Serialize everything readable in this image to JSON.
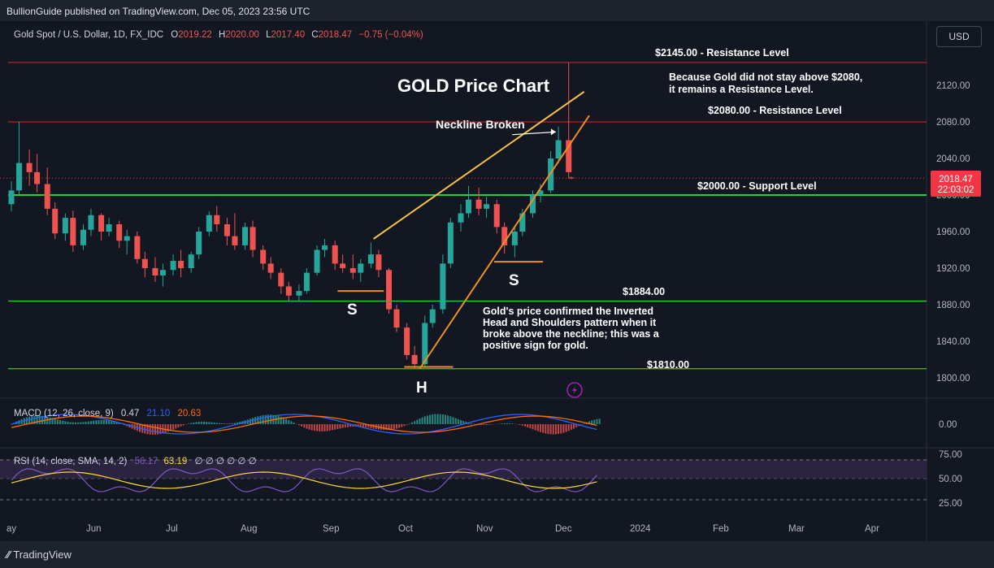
{
  "header": {
    "published": "BullionGuide published on TradingView.com, Dec 05, 2023 23:56 UTC"
  },
  "legend": {
    "symbol": "Gold Spot / U.S. Dollar, 1D, FX_IDC",
    "o_label": "O",
    "o": "2019.22",
    "h_label": "H",
    "h": "2020.00",
    "l_label": "L",
    "l": "2017.40",
    "c_label": "C",
    "c": "2018.47",
    "change": "−0.75 (−0.04%)"
  },
  "currency_button": "USD",
  "price_tag": {
    "price": "2018.47",
    "countdown": "22:03:02"
  },
  "annotations": {
    "title": "GOLD Price Chart",
    "res_2145": "$2145.00 - Resistance Level",
    "res_note_1": "Because Gold did not stay above $2080,",
    "res_note_2": "it remains a Resistance Level.",
    "res_2080": "$2080.00 - Resistance Level",
    "neckline": "Neckline Broken",
    "support_2000": "$2000.00 - Support Level",
    "level_1884": "$1884.00",
    "level_1810": "$1810.00",
    "s_left": "S",
    "s_right": "S",
    "head": "H",
    "desc": [
      "Gold's price confirmed the Inverted",
      "Head and Shoulders pattern when it",
      "broke above the neckline; this was a",
      "positive sign for gold."
    ]
  },
  "macd_legend": {
    "label": "MACD (12, 26, close, 9)",
    "hist": "0.47",
    "macd": "21.10",
    "signal": "20.63"
  },
  "rsi_legend": {
    "label": "RSI (14, close, SMA, 14, 2)",
    "rsi": "56.17",
    "sma": "63.19",
    "rest": "∅ ∅ ∅ ∅ ∅ ∅"
  },
  "footer": {
    "brand": "TradingView"
  },
  "colors": {
    "up": "#26a69a",
    "down": "#ef5350",
    "resistance": "#b2212a",
    "support": "#1fd13a",
    "channel_upper": "#f5c242",
    "channel_lower": "#f08f1e",
    "macd": "#2962ff",
    "signal": "#ff6d00",
    "rsi": "#7e57c2",
    "rsi_sma": "#fdd835",
    "accent": "#f23645"
  },
  "chart_data": {
    "type": "candlestick",
    "price_axis_ticks": [
      1800,
      1840,
      1880,
      1920,
      1960,
      2000,
      2040,
      2080,
      2120
    ],
    "macd_axis_ticks": [
      "0.00"
    ],
    "rsi_axis_ticks": [
      "25.00",
      "50.00",
      "75.00"
    ],
    "time_labels": [
      "ay",
      "Jun",
      "Jul",
      "Aug",
      "Sep",
      "Oct",
      "Nov",
      "Dec",
      "2024",
      "Feb",
      "Mar",
      "Apr"
    ],
    "levels": [
      2145,
      2080,
      2000,
      1884,
      1810
    ],
    "current_price": 2018.47,
    "ohlc": [
      {
        "date": "2023-05-01",
        "o": 1990,
        "h": 2015,
        "c": 2005,
        "l": 1982
      },
      {
        "date": "2023-05-04",
        "o": 2005,
        "h": 2080,
        "c": 2035,
        "l": 2000
      },
      {
        "date": "2023-05-08",
        "o": 2035,
        "h": 2050,
        "c": 2025,
        "l": 2010
      },
      {
        "date": "2023-05-11",
        "o": 2025,
        "h": 2045,
        "c": 2012,
        "l": 2003
      },
      {
        "date": "2023-05-15",
        "o": 2012,
        "h": 2030,
        "c": 1985,
        "l": 1978
      },
      {
        "date": "2023-05-18",
        "o": 1985,
        "h": 1992,
        "c": 1958,
        "l": 1952
      },
      {
        "date": "2023-05-22",
        "o": 1958,
        "h": 1980,
        "c": 1975,
        "l": 1950
      },
      {
        "date": "2023-05-25",
        "o": 1975,
        "h": 1983,
        "c": 1945,
        "l": 1938
      },
      {
        "date": "2023-05-29",
        "o": 1945,
        "h": 1968,
        "c": 1962,
        "l": 1940
      },
      {
        "date": "2023-06-01",
        "o": 1962,
        "h": 1985,
        "c": 1978,
        "l": 1955
      },
      {
        "date": "2023-06-05",
        "o": 1978,
        "h": 1980,
        "c": 1960,
        "l": 1950
      },
      {
        "date": "2023-06-08",
        "o": 1960,
        "h": 1975,
        "c": 1968,
        "l": 1955
      },
      {
        "date": "2023-06-12",
        "o": 1968,
        "h": 1972,
        "c": 1950,
        "l": 1942
      },
      {
        "date": "2023-06-15",
        "o": 1950,
        "h": 1962,
        "c": 1955,
        "l": 1935
      },
      {
        "date": "2023-06-19",
        "o": 1955,
        "h": 1960,
        "c": 1930,
        "l": 1925
      },
      {
        "date": "2023-06-22",
        "o": 1930,
        "h": 1938,
        "c": 1920,
        "l": 1910
      },
      {
        "date": "2023-06-26",
        "o": 1920,
        "h": 1932,
        "c": 1912,
        "l": 1905
      },
      {
        "date": "2023-06-29",
        "o": 1912,
        "h": 1925,
        "c": 1918,
        "l": 1900
      },
      {
        "date": "2023-07-03",
        "o": 1918,
        "h": 1935,
        "c": 1928,
        "l": 1912
      },
      {
        "date": "2023-07-06",
        "o": 1928,
        "h": 1940,
        "c": 1920,
        "l": 1910
      },
      {
        "date": "2023-07-10",
        "o": 1920,
        "h": 1938,
        "c": 1935,
        "l": 1915
      },
      {
        "date": "2023-07-13",
        "o": 1935,
        "h": 1965,
        "c": 1960,
        "l": 1930
      },
      {
        "date": "2023-07-17",
        "o": 1960,
        "h": 1982,
        "c": 1978,
        "l": 1955
      },
      {
        "date": "2023-07-20",
        "o": 1978,
        "h": 1988,
        "c": 1968,
        "l": 1960
      },
      {
        "date": "2023-07-24",
        "o": 1968,
        "h": 1975,
        "c": 1955,
        "l": 1945
      },
      {
        "date": "2023-07-27",
        "o": 1955,
        "h": 1980,
        "c": 1945,
        "l": 1940
      },
      {
        "date": "2023-07-31",
        "o": 1945,
        "h": 1970,
        "c": 1965,
        "l": 1940
      },
      {
        "date": "2023-08-03",
        "o": 1965,
        "h": 1972,
        "c": 1940,
        "l": 1932
      },
      {
        "date": "2023-08-07",
        "o": 1940,
        "h": 1945,
        "c": 1925,
        "l": 1918
      },
      {
        "date": "2023-08-10",
        "o": 1925,
        "h": 1932,
        "c": 1915,
        "l": 1908
      },
      {
        "date": "2023-08-14",
        "o": 1915,
        "h": 1920,
        "c": 1900,
        "l": 1892
      },
      {
        "date": "2023-08-17",
        "o": 1900,
        "h": 1905,
        "c": 1890,
        "l": 1884
      },
      {
        "date": "2023-08-21",
        "o": 1890,
        "h": 1902,
        "c": 1895,
        "l": 1884
      },
      {
        "date": "2023-08-24",
        "o": 1895,
        "h": 1920,
        "c": 1915,
        "l": 1892
      },
      {
        "date": "2023-08-28",
        "o": 1915,
        "h": 1945,
        "c": 1940,
        "l": 1912
      },
      {
        "date": "2023-08-31",
        "o": 1940,
        "h": 1952,
        "c": 1945,
        "l": 1932
      },
      {
        "date": "2023-09-04",
        "o": 1945,
        "h": 1950,
        "c": 1925,
        "l": 1918
      },
      {
        "date": "2023-09-07",
        "o": 1925,
        "h": 1935,
        "c": 1920,
        "l": 1915
      },
      {
        "date": "2023-09-11",
        "o": 1920,
        "h": 1935,
        "c": 1915,
        "l": 1908
      },
      {
        "date": "2023-09-14",
        "o": 1915,
        "h": 1930,
        "c": 1925,
        "l": 1905
      },
      {
        "date": "2023-09-18",
        "o": 1925,
        "h": 1948,
        "c": 1935,
        "l": 1920
      },
      {
        "date": "2023-09-21",
        "o": 1935,
        "h": 1940,
        "c": 1918,
        "l": 1910
      },
      {
        "date": "2023-09-25",
        "o": 1918,
        "h": 1920,
        "c": 1875,
        "l": 1870
      },
      {
        "date": "2023-09-28",
        "o": 1875,
        "h": 1880,
        "c": 1855,
        "l": 1850
      },
      {
        "date": "2023-10-02",
        "o": 1855,
        "h": 1860,
        "c": 1825,
        "l": 1820
      },
      {
        "date": "2023-10-05",
        "o": 1825,
        "h": 1835,
        "c": 1815,
        "l": 1810
      },
      {
        "date": "2023-10-09",
        "o": 1815,
        "h": 1868,
        "c": 1860,
        "l": 1812
      },
      {
        "date": "2023-10-12",
        "o": 1860,
        "h": 1880,
        "c": 1875,
        "l": 1855
      },
      {
        "date": "2023-10-16",
        "o": 1875,
        "h": 1935,
        "c": 1925,
        "l": 1870
      },
      {
        "date": "2023-10-19",
        "o": 1925,
        "h": 1975,
        "c": 1970,
        "l": 1920
      },
      {
        "date": "2023-10-23",
        "o": 1970,
        "h": 1990,
        "c": 1980,
        "l": 1960
      },
      {
        "date": "2023-10-26",
        "o": 1980,
        "h": 2010,
        "c": 1995,
        "l": 1975
      },
      {
        "date": "2023-10-30",
        "o": 1995,
        "h": 2008,
        "c": 1985,
        "l": 1978
      },
      {
        "date": "2023-11-02",
        "o": 1985,
        "h": 1998,
        "c": 1990,
        "l": 1975
      },
      {
        "date": "2023-11-06",
        "o": 1990,
        "h": 1995,
        "c": 1965,
        "l": 1958
      },
      {
        "date": "2023-11-09",
        "o": 1965,
        "h": 1970,
        "c": 1945,
        "l": 1936
      },
      {
        "date": "2023-11-13",
        "o": 1945,
        "h": 1965,
        "c": 1960,
        "l": 1932
      },
      {
        "date": "2023-11-16",
        "o": 1960,
        "h": 1985,
        "c": 1980,
        "l": 1955
      },
      {
        "date": "2023-11-20",
        "o": 1980,
        "h": 2005,
        "c": 2000,
        "l": 1975
      },
      {
        "date": "2023-11-23",
        "o": 2000,
        "h": 2012,
        "c": 2005,
        "l": 1992
      },
      {
        "date": "2023-11-27",
        "o": 2005,
        "h": 2048,
        "c": 2040,
        "l": 2002
      },
      {
        "date": "2023-11-30",
        "o": 2040,
        "h": 2075,
        "c": 2060,
        "l": 2035
      },
      {
        "date": "2023-12-04",
        "o": 2060,
        "h": 2145,
        "c": 2025,
        "l": 2018
      },
      {
        "date": "2023-12-05",
        "o": 2019.22,
        "h": 2020,
        "c": 2018.47,
        "l": 2017.4
      }
    ]
  }
}
